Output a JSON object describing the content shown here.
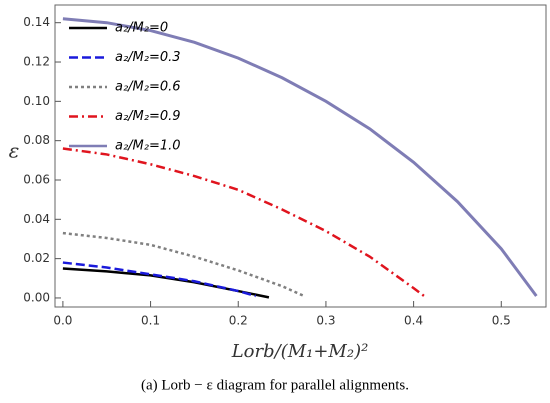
{
  "chart_data": {
    "type": "line",
    "x_label": "Lorb/(M₁+M₂)²",
    "y_label": "ε",
    "caption": "(a) Lorb − ε diagram for parallel alignments.",
    "xlim": [
      -0.009,
      0.551
    ],
    "ylim": [
      -0.0046,
      0.149
    ],
    "xticks": [
      {
        "value": 0,
        "label": "0.0"
      },
      {
        "value": 0.1,
        "label": "0.1"
      },
      {
        "value": 0.2,
        "label": "0.2"
      },
      {
        "value": 0.3,
        "label": "0.3"
      },
      {
        "value": 0.4,
        "label": "0.4"
      },
      {
        "value": 0.5,
        "label": "0.5"
      }
    ],
    "yticks": [
      {
        "value": 0,
        "label": "0.00"
      },
      {
        "value": 0.02,
        "label": "0.02"
      },
      {
        "value": 0.04,
        "label": "0.04"
      },
      {
        "value": 0.06,
        "label": "0.06"
      },
      {
        "value": 0.08,
        "label": "0.08"
      },
      {
        "value": 0.1,
        "label": "0.10"
      },
      {
        "value": 0.12,
        "label": "0.12"
      },
      {
        "value": 0.14,
        "label": "0.14"
      }
    ],
    "legend": "upper left",
    "series": [
      {
        "name": "a₂/M₂=0",
        "color": "#000000",
        "dash": "solid",
        "x": [
          0,
          0.05,
          0.1,
          0.15,
          0.2,
          0.235
        ],
        "values": [
          0.015,
          0.0135,
          0.0115,
          0.008,
          0.0035,
          0.0003
        ]
      },
      {
        "name": "a₂/M₂=0.3",
        "color": "#1a1adb",
        "dash": "dashed",
        "x": [
          0,
          0.05,
          0.1,
          0.15,
          0.2,
          0.22
        ],
        "values": [
          0.018,
          0.0155,
          0.012,
          0.0085,
          0.0035,
          0.001
        ]
      },
      {
        "name": "a₂/M₂=0.6",
        "color": "#808080",
        "dash": "dotted",
        "x": [
          0,
          0.05,
          0.1,
          0.15,
          0.2,
          0.25,
          0.275
        ],
        "values": [
          0.033,
          0.0305,
          0.027,
          0.021,
          0.014,
          0.006,
          0.001
        ]
      },
      {
        "name": "a₂/M₂=0.9",
        "color": "#e0141e",
        "dash": "dashdot",
        "x": [
          0,
          0.05,
          0.1,
          0.15,
          0.2,
          0.25,
          0.3,
          0.35,
          0.4,
          0.415
        ],
        "values": [
          0.076,
          0.073,
          0.068,
          0.062,
          0.055,
          0.045,
          0.034,
          0.021,
          0.005,
          0.0
        ]
      },
      {
        "name": "a₂/M₂=1.0",
        "color": "#7f7db5",
        "dash": "solid",
        "x": [
          0,
          0.05,
          0.1,
          0.15,
          0.2,
          0.25,
          0.3,
          0.35,
          0.4,
          0.45,
          0.5,
          0.54
        ],
        "values": [
          0.142,
          0.14,
          0.136,
          0.13,
          0.122,
          0.112,
          0.1,
          0.086,
          0.069,
          0.049,
          0.025,
          0.001
        ]
      }
    ]
  }
}
